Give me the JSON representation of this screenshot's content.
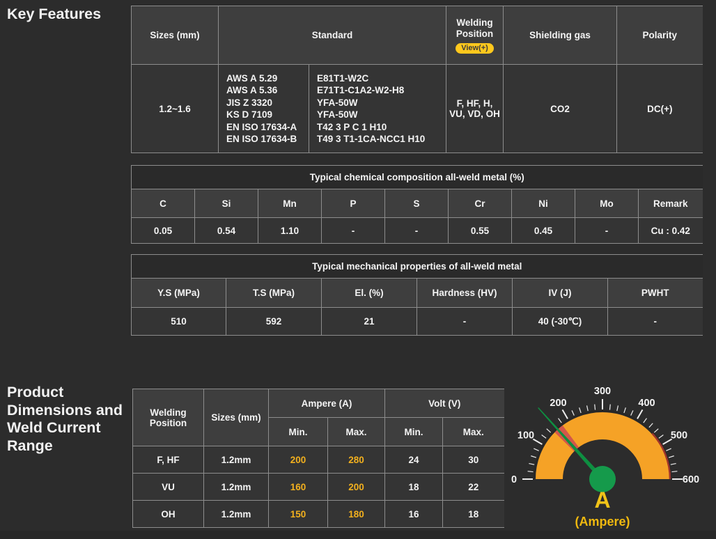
{
  "headings": {
    "key_features": "Key Features",
    "product_dimensions": "Product Dimensions and Weld Current Range"
  },
  "spec_table": {
    "headers": {
      "sizes": "Sizes (mm)",
      "standard": "Standard",
      "welding_position": "Welding Position",
      "view_button": "View(+)",
      "shielding_gas": "Shielding gas",
      "polarity": "Polarity"
    },
    "row": {
      "sizes": "1.2~1.6",
      "standard_orgs": [
        "AWS A 5.29",
        "AWS A 5.36",
        "JIS Z 3320",
        "KS D 7109",
        "EN ISO 17634-A",
        "EN ISO 17634-B"
      ],
      "standard_codes": [
        "E81T1-W2C",
        "E71T1-C1A2-W2-H8",
        "YFA-50W",
        "YFA-50W",
        "T42 3 P C 1 H10",
        "T49 3 T1-1CA-NCC1 H10"
      ],
      "welding_position": "F, HF, H, VU, VD, OH",
      "shielding_gas": "CO2",
      "polarity": "DC(+)"
    }
  },
  "chemical_table": {
    "title": "Typical chemical composition all-weld metal (%)",
    "columns": [
      "C",
      "Si",
      "Mn",
      "P",
      "S",
      "Cr",
      "Ni",
      "Mo",
      "Remark"
    ],
    "values": [
      "0.05",
      "0.54",
      "1.10",
      "-",
      "-",
      "0.55",
      "0.45",
      "-",
      "Cu : 0.42"
    ]
  },
  "mechanical_table": {
    "title": "Typical mechanical properties of all-weld metal",
    "columns": [
      "Y.S (MPa)",
      "T.S (MPa)",
      "El. (%)",
      "Hardness (HV)",
      "IV (J)",
      "PWHT"
    ],
    "values": [
      "510",
      "592",
      "21",
      "-",
      "40 (-30℃)",
      "-"
    ]
  },
  "current_table": {
    "headers": {
      "welding_position": "Welding Position",
      "sizes": "Sizes (mm)",
      "ampere": "Ampere (A)",
      "volt": "Volt (V)",
      "min": "Min.",
      "max": "Max."
    },
    "rows": [
      {
        "position": "F, HF",
        "size": "1.2mm",
        "amp_min": "200",
        "amp_max": "280",
        "volt_min": "24",
        "volt_max": "30"
      },
      {
        "position": "VU",
        "size": "1.2mm",
        "amp_min": "160",
        "amp_max": "200",
        "volt_min": "18",
        "volt_max": "22"
      },
      {
        "position": "OH",
        "size": "1.2mm",
        "amp_min": "150",
        "amp_max": "180",
        "volt_min": "16",
        "volt_max": "18"
      }
    ]
  },
  "chart_data": {
    "type": "gauge",
    "title": "Weld current range gauge",
    "min": 0,
    "max": 600,
    "major_tick_step": 100,
    "minor_tick_step": 20,
    "tick_labels": [
      "0",
      "100",
      "200",
      "300",
      "400",
      "500",
      "600"
    ],
    "needle_value": 160,
    "red_zone": [
      148,
      178
    ],
    "outer_red_arc": [
      458,
      600
    ],
    "unit_label": "A",
    "unit_sublabel": "(Ampere)",
    "colors": {
      "band": "#F5A226",
      "needle": "#0E8F41",
      "hub": "#159A4B",
      "red_zone": "#D2574A",
      "outer_red": "#9E342B",
      "outer_ring": "#272727",
      "tick": "#EDEDED",
      "label": "#F3F3F3",
      "unit": "#F2C318"
    }
  },
  "colors": {
    "page_bg": "#2c2c2c",
    "header_cell_bg": "#3e3e3e",
    "body_cell_bg": "#343434",
    "title_band_bg": "#2a2a2a",
    "border": "#8d8d8d",
    "pill_bg": "#FFC81D",
    "ampere_text": "#F2B01E"
  }
}
